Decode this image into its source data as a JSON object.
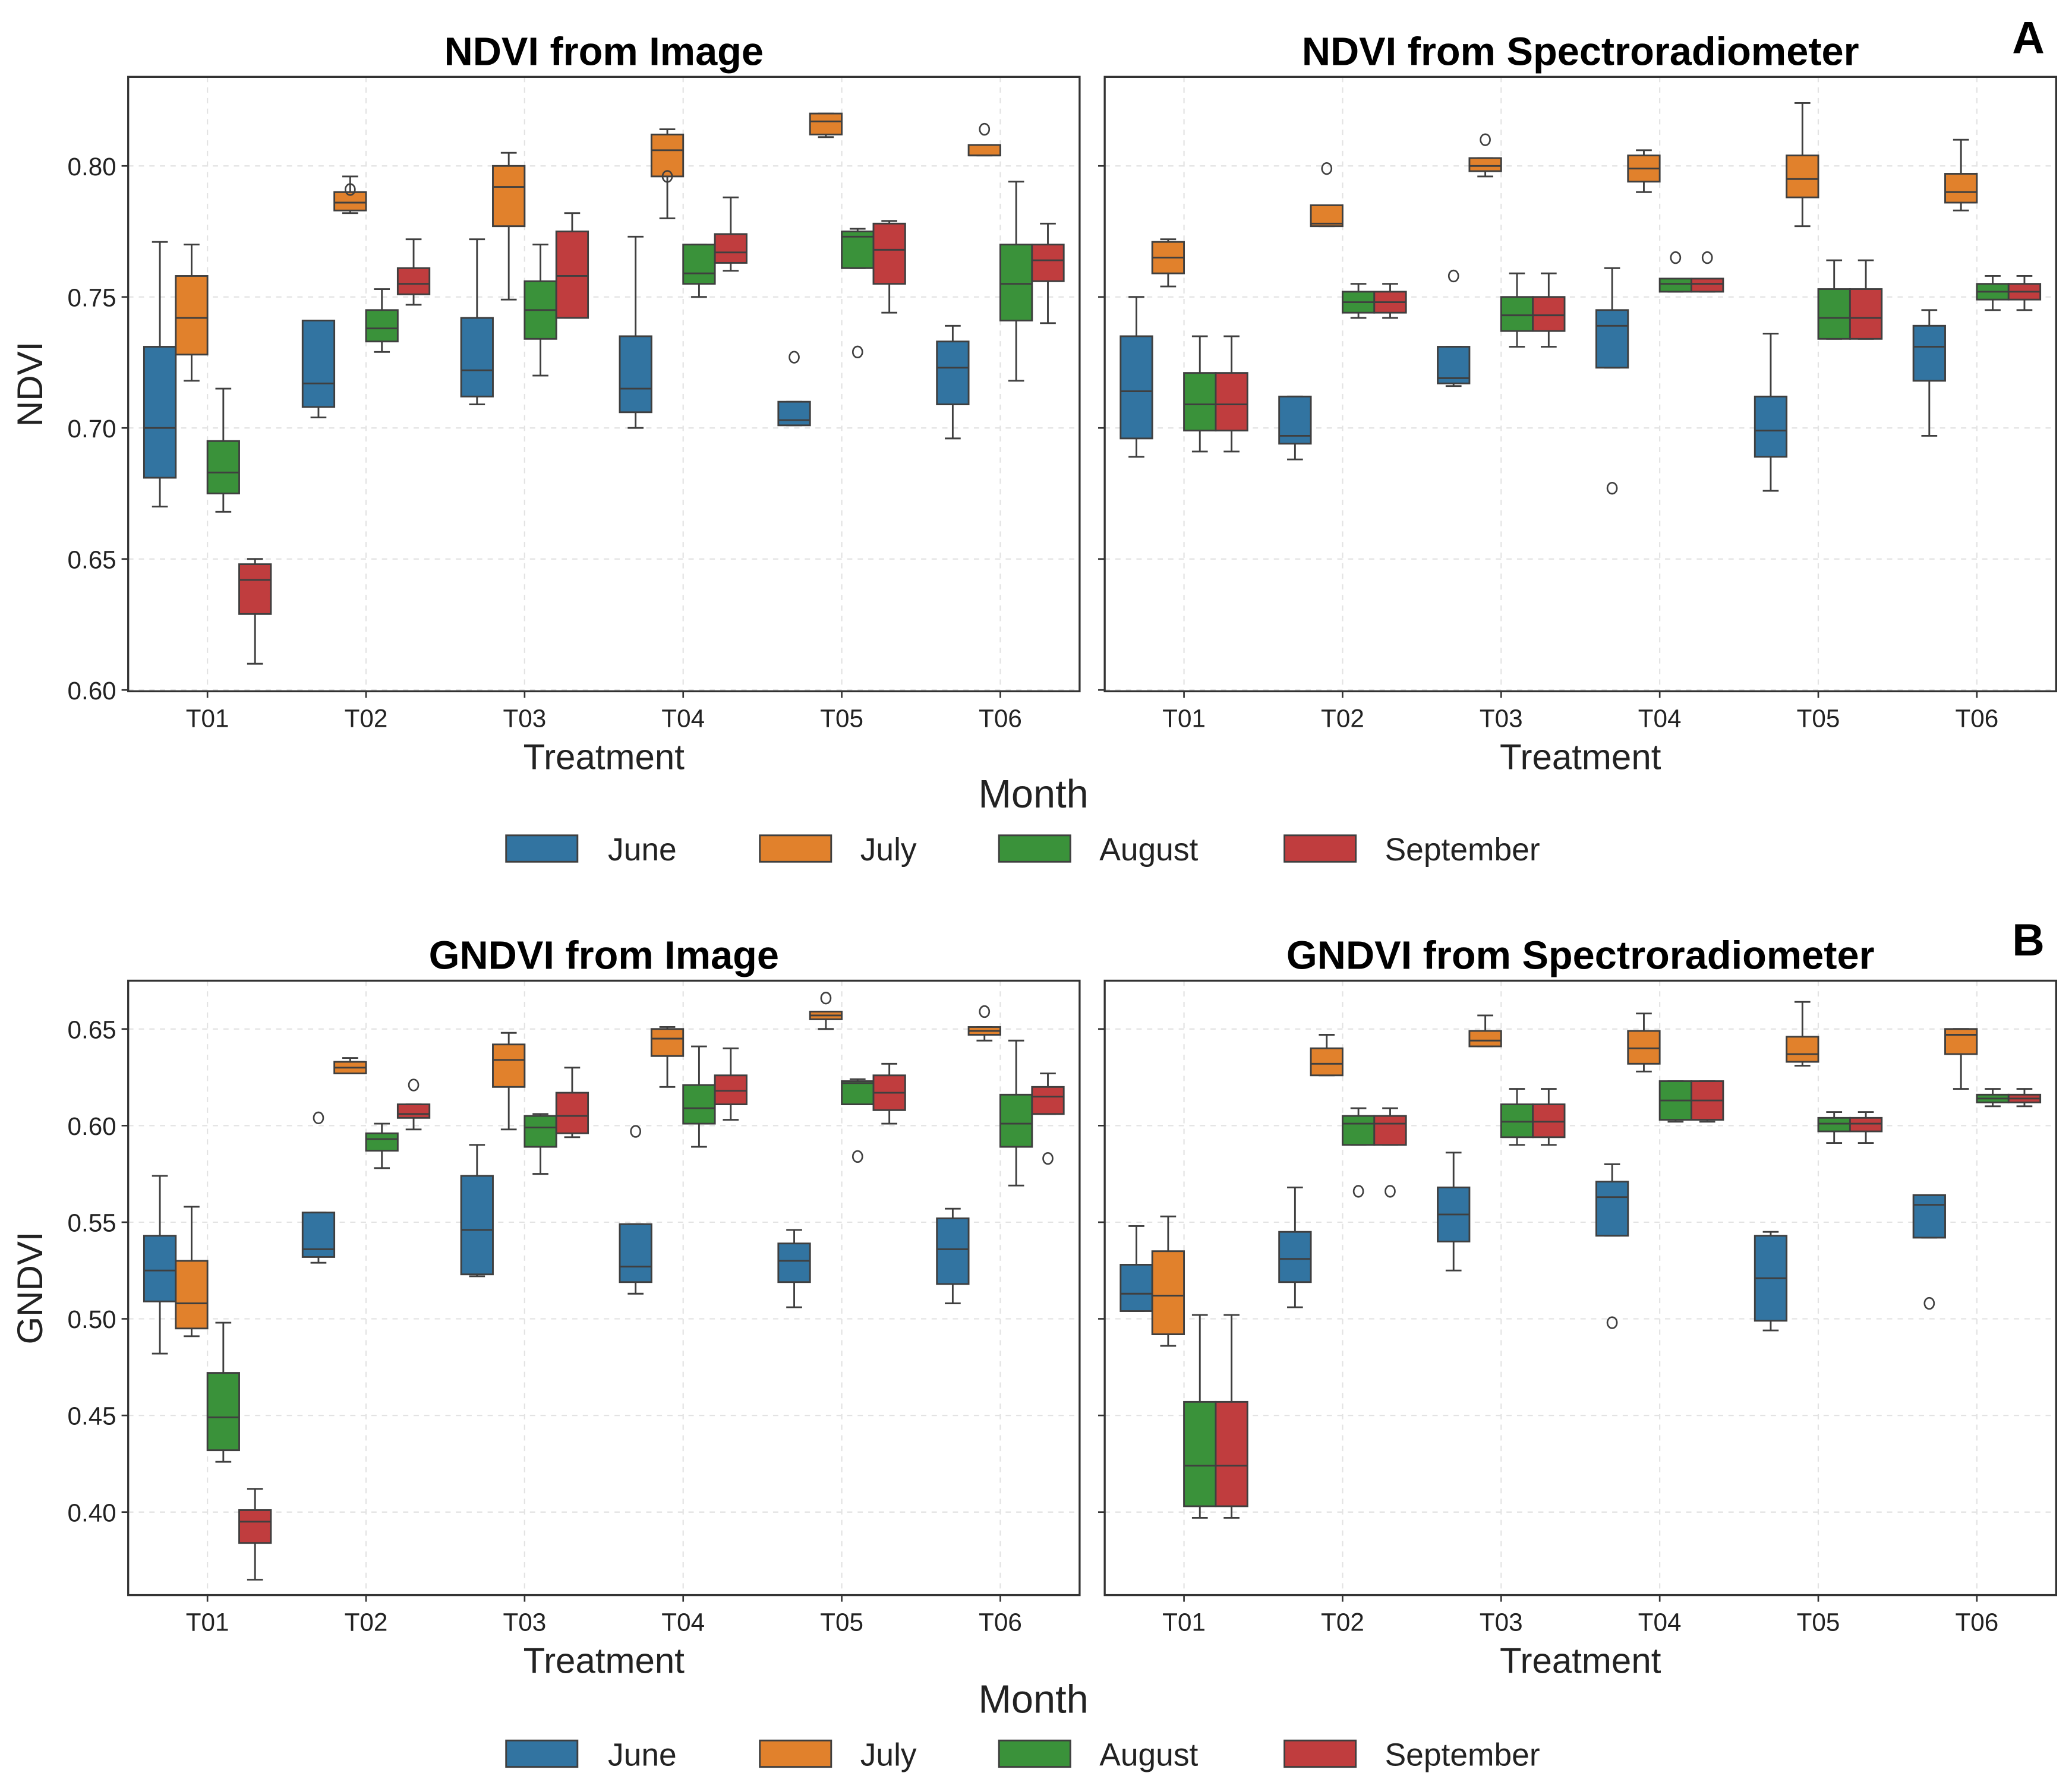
{
  "figure": {
    "legend": {
      "title": "Month",
      "entries": [
        {
          "label": "June",
          "color": "#3274a1"
        },
        {
          "label": "July",
          "color": "#e1812c"
        },
        {
          "label": "August",
          "color": "#3a923a"
        },
        {
          "label": "September",
          "color": "#c03d3e"
        }
      ]
    },
    "panel_letters": [
      "A",
      "B"
    ],
    "edge_color": "#3f3f3f"
  },
  "chart_data": [
    {
      "type": "box",
      "title": "NDVI from Image",
      "xlabel": "Treatment",
      "ylabel": "NDVI",
      "ylim": [
        0.5995,
        0.834
      ],
      "yticks": [
        "0.60",
        "0.65",
        "0.70",
        "0.75",
        "0.80"
      ],
      "show_ytick_labels": true,
      "grid": true,
      "categories": [
        "T01",
        "T02",
        "T03",
        "T04",
        "T05",
        "T06"
      ],
      "stat_order": [
        "whisker_low",
        "q1",
        "median",
        "q3",
        "whisker_high",
        "outliers"
      ],
      "series": [
        {
          "name": "June",
          "stats": [
            [
              0.67,
              0.681,
              0.7,
              0.731,
              0.771,
              []
            ],
            [
              0.704,
              0.708,
              0.717,
              0.741,
              0.741,
              []
            ],
            [
              0.709,
              0.712,
              0.722,
              0.742,
              0.772,
              []
            ],
            [
              0.7,
              0.706,
              0.715,
              0.735,
              0.773,
              []
            ],
            [
              0.701,
              0.701,
              0.703,
              0.71,
              0.71,
              [
                0.727
              ]
            ],
            [
              0.696,
              0.709,
              0.723,
              0.733,
              0.739,
              []
            ]
          ]
        },
        {
          "name": "July",
          "stats": [
            [
              0.718,
              0.728,
              0.742,
              0.758,
              0.77,
              []
            ],
            [
              0.782,
              0.783,
              0.786,
              0.79,
              0.796,
              [
                0.791
              ]
            ],
            [
              0.749,
              0.777,
              0.792,
              0.8,
              0.805,
              []
            ],
            [
              0.78,
              0.796,
              0.806,
              0.812,
              0.814,
              [
                0.796
              ]
            ],
            [
              0.811,
              0.812,
              0.817,
              0.82,
              0.82,
              []
            ],
            [
              0.804,
              0.804,
              0.804,
              0.808,
              0.808,
              [
                0.814
              ]
            ]
          ]
        },
        {
          "name": "August",
          "stats": [
            [
              0.668,
              0.675,
              0.683,
              0.695,
              0.715,
              []
            ],
            [
              0.729,
              0.733,
              0.738,
              0.745,
              0.753,
              []
            ],
            [
              0.72,
              0.734,
              0.745,
              0.756,
              0.77,
              []
            ],
            [
              0.75,
              0.755,
              0.759,
              0.77,
              0.77,
              []
            ],
            [
              0.761,
              0.761,
              0.773,
              0.775,
              0.776,
              [
                0.729
              ]
            ],
            [
              0.718,
              0.741,
              0.755,
              0.77,
              0.794,
              []
            ]
          ]
        },
        {
          "name": "September",
          "stats": [
            [
              0.61,
              0.629,
              0.642,
              0.648,
              0.65,
              []
            ],
            [
              0.747,
              0.751,
              0.755,
              0.761,
              0.772,
              []
            ],
            [
              0.742,
              0.742,
              0.758,
              0.775,
              0.782,
              []
            ],
            [
              0.76,
              0.763,
              0.767,
              0.774,
              0.788,
              []
            ],
            [
              0.744,
              0.755,
              0.768,
              0.778,
              0.779,
              []
            ],
            [
              0.74,
              0.756,
              0.764,
              0.77,
              0.778,
              []
            ]
          ]
        }
      ]
    },
    {
      "type": "box",
      "title": "NDVI from Spectroradiometer",
      "xlabel": "Treatment",
      "ylabel": "",
      "ylim": [
        0.5995,
        0.834
      ],
      "yticks": [
        "0.60",
        "0.65",
        "0.70",
        "0.75",
        "0.80"
      ],
      "show_ytick_labels": false,
      "grid": true,
      "categories": [
        "T01",
        "T02",
        "T03",
        "T04",
        "T05",
        "T06"
      ],
      "stat_order": [
        "whisker_low",
        "q1",
        "median",
        "q3",
        "whisker_high",
        "outliers"
      ],
      "series": [
        {
          "name": "June",
          "stats": [
            [
              0.689,
              0.696,
              0.714,
              0.735,
              0.75,
              []
            ],
            [
              0.688,
              0.694,
              0.697,
              0.712,
              0.712,
              []
            ],
            [
              0.716,
              0.717,
              0.719,
              0.731,
              0.731,
              [
                0.758
              ]
            ],
            [
              0.723,
              0.723,
              0.739,
              0.745,
              0.761,
              [
                0.677
              ]
            ],
            [
              0.676,
              0.689,
              0.699,
              0.712,
              0.736,
              []
            ],
            [
              0.697,
              0.718,
              0.731,
              0.739,
              0.745,
              []
            ]
          ]
        },
        {
          "name": "July",
          "stats": [
            [
              0.754,
              0.759,
              0.765,
              0.771,
              0.772,
              []
            ],
            [
              0.777,
              0.777,
              0.778,
              0.785,
              0.785,
              [
                0.799
              ]
            ],
            [
              0.796,
              0.798,
              0.8,
              0.803,
              0.803,
              [
                0.81
              ]
            ],
            [
              0.79,
              0.794,
              0.799,
              0.804,
              0.806,
              []
            ],
            [
              0.777,
              0.788,
              0.795,
              0.804,
              0.824,
              []
            ],
            [
              0.783,
              0.786,
              0.79,
              0.797,
              0.81,
              []
            ]
          ]
        },
        {
          "name": "August",
          "stats": [
            [
              0.691,
              0.699,
              0.709,
              0.721,
              0.735,
              []
            ],
            [
              0.742,
              0.744,
              0.748,
              0.752,
              0.755,
              []
            ],
            [
              0.731,
              0.737,
              0.743,
              0.75,
              0.759,
              []
            ],
            [
              0.752,
              0.752,
              0.755,
              0.757,
              0.757,
              [
                0.765
              ]
            ],
            [
              0.734,
              0.734,
              0.742,
              0.753,
              0.764,
              []
            ],
            [
              0.745,
              0.749,
              0.752,
              0.755,
              0.758,
              []
            ]
          ]
        },
        {
          "name": "September",
          "stats": [
            [
              0.691,
              0.699,
              0.709,
              0.721,
              0.735,
              []
            ],
            [
              0.742,
              0.744,
              0.748,
              0.752,
              0.755,
              []
            ],
            [
              0.731,
              0.737,
              0.743,
              0.75,
              0.759,
              []
            ],
            [
              0.752,
              0.752,
              0.755,
              0.757,
              0.757,
              [
                0.765
              ]
            ],
            [
              0.734,
              0.734,
              0.742,
              0.753,
              0.764,
              []
            ],
            [
              0.745,
              0.749,
              0.752,
              0.755,
              0.758,
              []
            ]
          ]
        }
      ]
    },
    {
      "type": "box",
      "title": "GNDVI from Image",
      "xlabel": "Treatment",
      "ylabel": "GNDVI",
      "ylim": [
        0.357,
        0.675
      ],
      "yticks": [
        "0.40",
        "0.45",
        "0.50",
        "0.55",
        "0.60",
        "0.65"
      ],
      "show_ytick_labels": true,
      "grid": true,
      "categories": [
        "T01",
        "T02",
        "T03",
        "T04",
        "T05",
        "T06"
      ],
      "stat_order": [
        "whisker_low",
        "q1",
        "median",
        "q3",
        "whisker_high",
        "outliers"
      ],
      "series": [
        {
          "name": "June",
          "stats": [
            [
              0.482,
              0.509,
              0.525,
              0.543,
              0.574,
              []
            ],
            [
              0.529,
              0.532,
              0.536,
              0.555,
              0.555,
              [
                0.604
              ]
            ],
            [
              0.522,
              0.523,
              0.546,
              0.574,
              0.59,
              []
            ],
            [
              0.513,
              0.519,
              0.527,
              0.549,
              0.549,
              [
                0.597
              ]
            ],
            [
              0.506,
              0.519,
              0.53,
              0.539,
              0.546,
              []
            ],
            [
              0.508,
              0.518,
              0.536,
              0.552,
              0.557,
              []
            ]
          ]
        },
        {
          "name": "July",
          "stats": [
            [
              0.491,
              0.495,
              0.508,
              0.53,
              0.558,
              []
            ],
            [
              0.627,
              0.627,
              0.63,
              0.633,
              0.635,
              []
            ],
            [
              0.598,
              0.62,
              0.634,
              0.642,
              0.648,
              []
            ],
            [
              0.62,
              0.636,
              0.645,
              0.65,
              0.651,
              []
            ],
            [
              0.65,
              0.655,
              0.657,
              0.659,
              0.659,
              [
                0.666
              ]
            ],
            [
              0.644,
              0.647,
              0.649,
              0.651,
              0.651,
              [
                0.659
              ]
            ]
          ]
        },
        {
          "name": "August",
          "stats": [
            [
              0.426,
              0.432,
              0.449,
              0.472,
              0.498,
              []
            ],
            [
              0.578,
              0.587,
              0.593,
              0.596,
              0.601,
              []
            ],
            [
              0.575,
              0.589,
              0.599,
              0.605,
              0.606,
              []
            ],
            [
              0.589,
              0.601,
              0.609,
              0.621,
              0.641,
              []
            ],
            [
              0.611,
              0.611,
              0.622,
              0.623,
              0.624,
              [
                0.584
              ]
            ],
            [
              0.569,
              0.589,
              0.601,
              0.616,
              0.644,
              []
            ]
          ]
        },
        {
          "name": "September",
          "stats": [
            [
              0.365,
              0.384,
              0.395,
              0.401,
              0.412,
              []
            ],
            [
              0.598,
              0.604,
              0.606,
              0.611,
              0.611,
              [
                0.621
              ]
            ],
            [
              0.594,
              0.596,
              0.605,
              0.617,
              0.63,
              []
            ],
            [
              0.603,
              0.611,
              0.618,
              0.626,
              0.64,
              []
            ],
            [
              0.601,
              0.608,
              0.617,
              0.626,
              0.632,
              []
            ],
            [
              0.606,
              0.606,
              0.615,
              0.62,
              0.627,
              [
                0.583
              ]
            ]
          ]
        }
      ]
    },
    {
      "type": "box",
      "title": "GNDVI from Spectroradiometer",
      "xlabel": "Treatment",
      "ylabel": "",
      "ylim": [
        0.357,
        0.675
      ],
      "yticks": [
        "0.40",
        "0.45",
        "0.50",
        "0.55",
        "0.60",
        "0.65"
      ],
      "show_ytick_labels": false,
      "grid": true,
      "categories": [
        "T01",
        "T02",
        "T03",
        "T04",
        "T05",
        "T06"
      ],
      "stat_order": [
        "whisker_low",
        "q1",
        "median",
        "q3",
        "whisker_high",
        "outliers"
      ],
      "series": [
        {
          "name": "June",
          "stats": [
            [
              0.504,
              0.504,
              0.513,
              0.528,
              0.548,
              []
            ],
            [
              0.506,
              0.519,
              0.531,
              0.545,
              0.568,
              []
            ],
            [
              0.525,
              0.54,
              0.554,
              0.568,
              0.586,
              []
            ],
            [
              0.543,
              0.543,
              0.563,
              0.571,
              0.58,
              [
                0.498
              ]
            ],
            [
              0.494,
              0.499,
              0.521,
              0.543,
              0.545,
              []
            ],
            [
              0.542,
              0.542,
              0.559,
              0.564,
              0.564,
              [
                0.508
              ]
            ]
          ]
        },
        {
          "name": "July",
          "stats": [
            [
              0.486,
              0.492,
              0.512,
              0.535,
              0.553,
              []
            ],
            [
              0.626,
              0.626,
              0.632,
              0.64,
              0.647,
              []
            ],
            [
              0.641,
              0.641,
              0.644,
              0.649,
              0.657,
              []
            ],
            [
              0.628,
              0.632,
              0.64,
              0.649,
              0.658,
              []
            ],
            [
              0.631,
              0.633,
              0.637,
              0.646,
              0.664,
              []
            ],
            [
              0.619,
              0.637,
              0.647,
              0.65,
              0.65,
              []
            ]
          ]
        },
        {
          "name": "August",
          "stats": [
            [
              0.397,
              0.403,
              0.424,
              0.457,
              0.502,
              []
            ],
            [
              0.59,
              0.59,
              0.601,
              0.605,
              0.609,
              [
                0.566
              ]
            ],
            [
              0.59,
              0.594,
              0.602,
              0.611,
              0.619,
              []
            ],
            [
              0.602,
              0.603,
              0.613,
              0.623,
              0.623,
              []
            ],
            [
              0.591,
              0.597,
              0.601,
              0.604,
              0.607,
              []
            ],
            [
              0.61,
              0.612,
              0.614,
              0.616,
              0.619,
              []
            ]
          ]
        },
        {
          "name": "September",
          "stats": [
            [
              0.397,
              0.403,
              0.424,
              0.457,
              0.502,
              []
            ],
            [
              0.59,
              0.59,
              0.601,
              0.605,
              0.609,
              [
                0.566
              ]
            ],
            [
              0.59,
              0.594,
              0.602,
              0.611,
              0.619,
              []
            ],
            [
              0.602,
              0.603,
              0.613,
              0.623,
              0.623,
              []
            ],
            [
              0.591,
              0.597,
              0.601,
              0.604,
              0.607,
              []
            ],
            [
              0.61,
              0.612,
              0.614,
              0.616,
              0.619,
              []
            ]
          ]
        }
      ]
    }
  ]
}
